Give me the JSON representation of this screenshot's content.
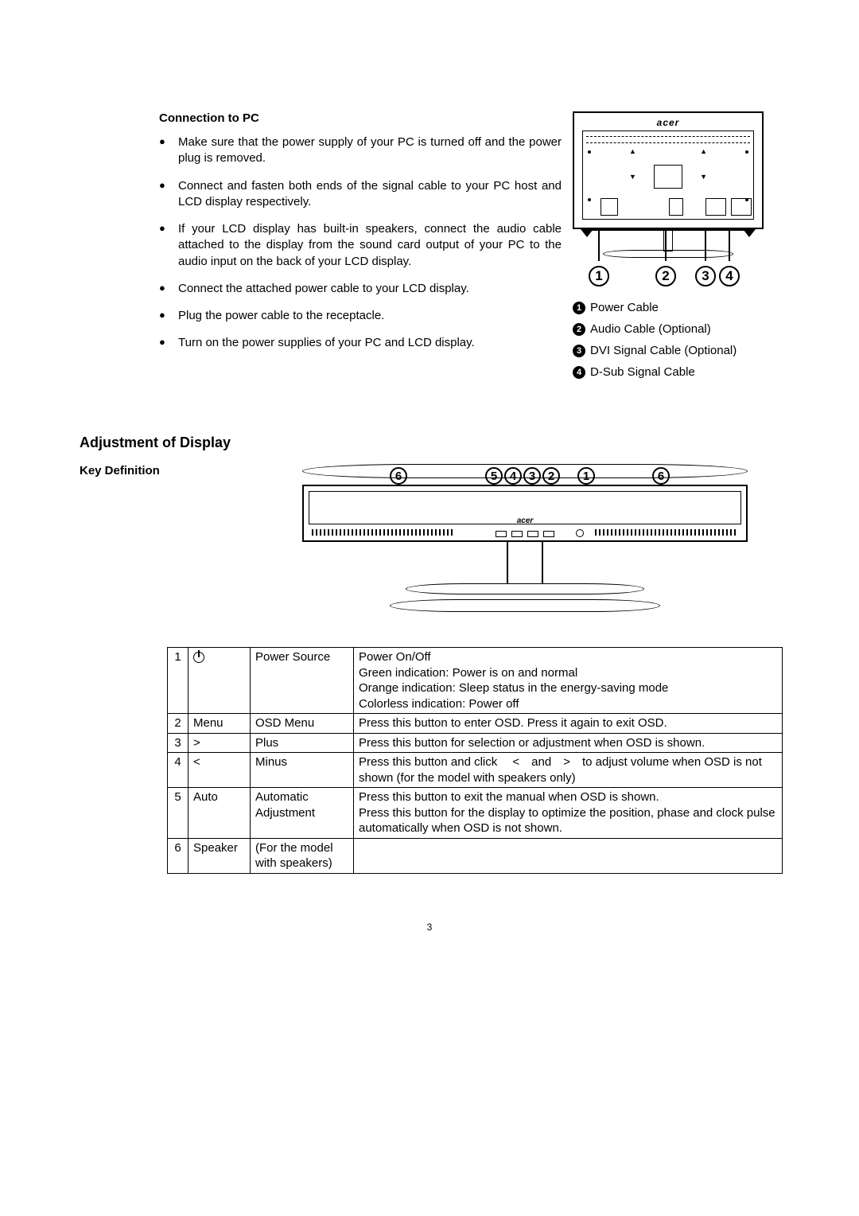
{
  "section1": {
    "title": "Connection to PC",
    "bullets": [
      "Make sure that the power supply of your PC is turned off and the power plug is removed.",
      "Connect and fasten both ends of the signal cable to your PC host and LCD display respectively.",
      "If your LCD display has built-in speakers, connect the audio cable attached to the display from the sound card output of your PC to the audio input on the back of your LCD display.",
      "Connect the attached power cable to your LCD display.",
      "Plug the power cable to the receptacle.",
      "Turn on the power supplies of your PC and LCD display."
    ]
  },
  "backDiagram": {
    "logo": "acer",
    "numbers": [
      "1",
      "2",
      "3",
      "4"
    ]
  },
  "legend": [
    {
      "n": "1",
      "label": "Power Cable"
    },
    {
      "n": "2",
      "label": "Audio Cable (Optional)"
    },
    {
      "n": "3",
      "label": "DVI Signal Cable (Optional)"
    },
    {
      "n": "4",
      "label": "D-Sub Signal Cable"
    }
  ],
  "section2": {
    "title": "Adjustment of Display",
    "subtitle": "Key Definition"
  },
  "frontDiagram": {
    "logo": "acer",
    "numbers": [
      "6",
      "5",
      "4",
      "3",
      "2",
      "1",
      "6"
    ]
  },
  "table": {
    "rows": [
      {
        "n": "1",
        "symbol": "power",
        "name": "Power Source",
        "desc": "Power On/Off\nGreen indication: Power is on and normal\nOrange indication: Sleep status in the energy-saving mode\nColorless indication: Power off"
      },
      {
        "n": "2",
        "symbol": "Menu",
        "name": "OSD Menu",
        "desc": "Press this button to enter OSD. Press it again to exit OSD."
      },
      {
        "n": "3",
        "symbol": ">",
        "name": "Plus",
        "desc": "Press this button for selection or adjustment when OSD is shown."
      },
      {
        "n": "4",
        "symbol": "<",
        "name": "Minus",
        "desc": "Press this button and click  < and > to adjust volume when OSD is not shown (for the model with speakers only)"
      },
      {
        "n": "5",
        "symbol": "Auto",
        "name": "Automatic Adjustment",
        "desc": "Press this button to exit the manual when OSD is shown.\nPress this button for the display to optimize the position, phase and clock pulse automatically when OSD is not shown."
      },
      {
        "n": "6",
        "symbol": "Speaker",
        "name": "(For the model with speakers)",
        "desc": ""
      }
    ]
  },
  "pageNumber": "3"
}
